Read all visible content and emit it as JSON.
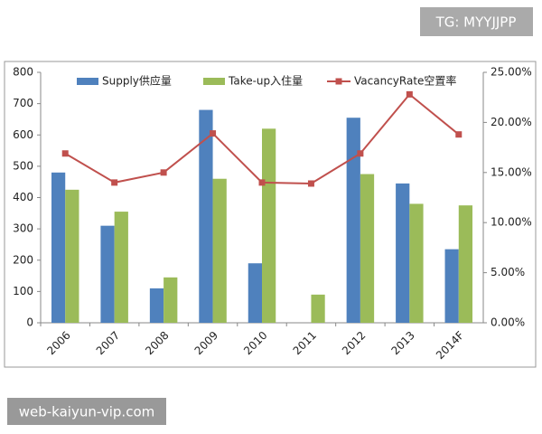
{
  "chart_data": {
    "type": "bar-line",
    "categories": [
      "2006",
      "2007",
      "2008",
      "2009",
      "2010",
      "2011",
      "2012",
      "2013",
      "2014F"
    ],
    "series": [
      {
        "name": "Supply供应量",
        "type": "bar",
        "color": "#4f81bd",
        "values": [
          480,
          310,
          110,
          680,
          190,
          null,
          655,
          445,
          235
        ]
      },
      {
        "name": "Take-up入住量",
        "type": "bar",
        "color": "#9bbb59",
        "values": [
          425,
          355,
          145,
          460,
          620,
          90,
          475,
          380,
          375
        ]
      },
      {
        "name": "VacancyRate空置率",
        "type": "line",
        "axis": "y2",
        "color": "#c0504d",
        "values": [
          16.9,
          14.0,
          15.0,
          18.9,
          14.0,
          13.9,
          16.9,
          22.8,
          18.8
        ]
      }
    ],
    "ylim": [
      0,
      800
    ],
    "yticks": [
      0,
      100,
      200,
      300,
      400,
      500,
      600,
      700,
      800
    ],
    "y2lim": [
      0,
      25
    ],
    "y2ticks": [
      {
        "value": 0,
        "label": "0.00%"
      },
      {
        "value": 5,
        "label": "5.00%"
      },
      {
        "value": 10,
        "label": "10.00%"
      },
      {
        "value": 15,
        "label": "15.00%"
      },
      {
        "value": 20,
        "label": "20.00%"
      },
      {
        "value": 25,
        "label": "25.00%"
      }
    ],
    "grid": false,
    "legend": "top"
  },
  "watermark_top": "TG: MYYJJPP",
  "watermark_bottom": "web-kaiyun-vip.com"
}
